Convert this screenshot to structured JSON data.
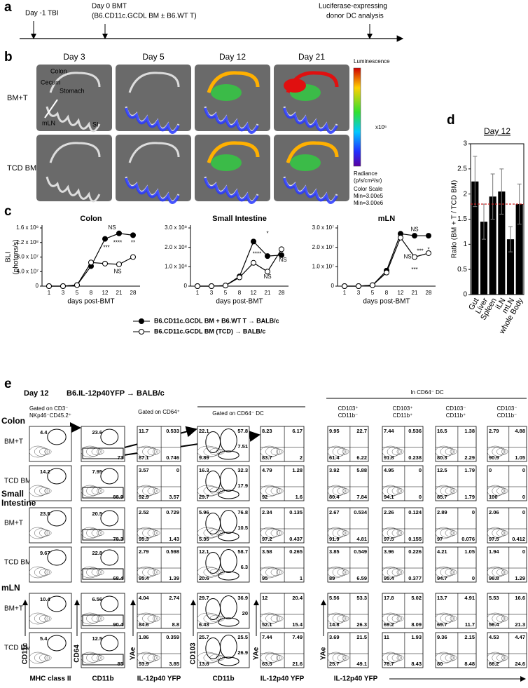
{
  "panel_labels": [
    "a",
    "b",
    "c",
    "d",
    "e"
  ],
  "timeline": {
    "events": [
      "Day -1 TBI",
      "Day 0 BMT",
      "(B6.CD11c.GCDL BM ± B6.WT T)",
      "Luciferase-expressing",
      "donor DC analysis"
    ]
  },
  "imaging": {
    "days": [
      "Day 3",
      "Day 5",
      "Day 12",
      "Day 21"
    ],
    "groups": [
      "BM+T",
      "TCD BM"
    ],
    "organs": [
      "Colon",
      "Cecum",
      "Stomach",
      "mLN",
      "SI"
    ],
    "scale": {
      "title": "Luminescence",
      "multiplier": "x10⁶",
      "unit": "Radiance",
      "unit_detail": "(p/s/cm²/sr)",
      "heading": "Color Scale",
      "min": "Min=3.00e5",
      "max": "Min=3.00e6"
    }
  },
  "chart_data": [
    {
      "type": "line",
      "title": "Colon",
      "ylabel": [
        "BLI",
        "(photons/s)"
      ],
      "xlabel": "days post-BMT",
      "categories": [
        "1",
        "3",
        "5",
        "8",
        "12",
        "21",
        "28"
      ],
      "series": [
        {
          "name": "B6.CD11c.GCDL BM + B6.WT T → BALB/c",
          "color": "#000000",
          "marker": "filled",
          "values": [
            0,
            0,
            3000000,
            55000000,
            130000000,
            145000000,
            140000000
          ]
        },
        {
          "name": "B6.CD11c.GCDL BM (TCD) → BALB/c",
          "color": "#000000",
          "marker": "open",
          "values": [
            0,
            0,
            3000000,
            65000000,
            62000000,
            60000000,
            80000000
          ]
        }
      ],
      "ylim": [
        0,
        160000000
      ],
      "yticks": [
        0,
        {
          "value": 40000000,
          "label": "4.0 x 10⁷"
        },
        {
          "value": 80000000,
          "label": "8.0 x 10⁷"
        },
        {
          "value": 120000000,
          "label": "1.2 x 10⁸"
        },
        {
          "value": 160000000,
          "label": "1.6 x 10⁸"
        }
      ],
      "annotations": [
        "NS",
        "***",
        "****",
        "**",
        "NS"
      ]
    },
    {
      "type": "line",
      "title": "Small Intestine",
      "xlabel": "days post-BMT",
      "categories": [
        "1",
        "3",
        "5",
        "8",
        "12",
        "21",
        "28"
      ],
      "series": [
        {
          "color": "#000000",
          "marker": "filled",
          "values": [
            0,
            0,
            3000000,
            50000000,
            230000000,
            155000000,
            160000000
          ]
        },
        {
          "color": "#000000",
          "marker": "open",
          "values": [
            0,
            0,
            3000000,
            45000000,
            120000000,
            75000000,
            190000000
          ]
        }
      ],
      "ylim": [
        0,
        300000000
      ],
      "yticks": [
        0,
        {
          "value": 100000000,
          "label": "1.0 x 10⁸"
        },
        {
          "value": 200000000,
          "label": "2.0 x 10⁸"
        },
        {
          "value": 300000000,
          "label": "3.0 x 10⁸"
        }
      ],
      "annotations": [
        "*",
        "****",
        "NS",
        "NS"
      ]
    },
    {
      "type": "line",
      "title": "mLN",
      "xlabel": "days post-BMT",
      "categories": [
        "1",
        "3",
        "5",
        "8",
        "12",
        "21",
        "28"
      ],
      "series": [
        {
          "color": "#000000",
          "marker": "filled",
          "values": [
            0,
            0,
            500000,
            8000000,
            27000000,
            26000000,
            26000000
          ]
        },
        {
          "color": "#000000",
          "marker": "open",
          "values": [
            0,
            0,
            500000,
            7000000,
            25000000,
            15000000,
            17000000
          ]
        }
      ],
      "ylim": [
        0,
        30000000
      ],
      "yticks": [
        0,
        {
          "value": 10000000,
          "label": "1.0 x 10⁷"
        },
        {
          "value": 20000000,
          "label": "2.0 x 10⁷"
        },
        {
          "value": 30000000,
          "label": "3.0 x 10⁷"
        }
      ],
      "annotations": [
        "NS",
        "NS",
        "***",
        "*",
        "***"
      ]
    },
    {
      "type": "bar",
      "title": "Day 12",
      "ylabel": "Ratio (BM + T / TCD BM)",
      "categories": [
        "Gut",
        "Liver",
        "Spleen",
        "iLN",
        "mLN",
        "whole Body"
      ],
      "values": [
        2.25,
        1.45,
        1.95,
        2.05,
        1.1,
        1.8
      ],
      "errors": [
        0.5,
        0.35,
        0.45,
        0.45,
        0.25,
        0.4
      ],
      "color": "#000000",
      "reference_line": 1.8,
      "reference_color": "#cc2222",
      "ylim": [
        0,
        3
      ],
      "yticks": [
        0,
        0.5,
        1,
        1.5,
        2,
        2.5,
        3
      ]
    }
  ],
  "flow": {
    "day": "Day 12",
    "model": "B6.IL-12p40YFP → BALB/c",
    "lineage_gate": [
      "Gated on CD3⁻",
      "NKp46⁻CD45.2⁺"
    ],
    "gates": [
      "Gated on CD64⁺",
      "Gated on CD64⁻ DC",
      "In CD64⁻ DC"
    ],
    "subsets": [
      [
        "CD103⁺",
        "CD11b⁻"
      ],
      [
        "CD103⁺",
        "CD11b⁺"
      ],
      [
        "CD103⁻",
        "CD11b⁺"
      ],
      [
        "CD103⁻",
        "CD11b⁻"
      ]
    ],
    "x_axes": [
      "MHC class II",
      "CD11b",
      "IL-12p40 YFP",
      "CD11b",
      "IL-12p40 YFP",
      "IL-12p40 YFP"
    ],
    "y_axes": [
      "CD11c",
      "CD64",
      "YAe",
      "CD103",
      "YAe",
      "YAe"
    ],
    "tissues": [
      {
        "name": "Colon",
        "rows": [
          {
            "group": "BM+T",
            "plots": [
              [
                4.4
              ],
              [
                23.6,
                73
              ],
              [
                11.7,
                0.533,
                87.1,
                0.746
              ],
              [
                22.1,
                57.8,
                7.51,
                9.89
              ],
              [
                8.23,
                6.17,
                83.7,
                2
              ],
              [
                9.95,
                22.7,
                61.4,
                6.22
              ],
              [
                7.44,
                0.536,
                91.8,
                0.238
              ],
              [
                16.5,
                1.38,
                80.3,
                2.29
              ],
              [
                2.79,
                4.88,
                90.9,
                1.05
              ]
            ]
          },
          {
            "group": "TCD BM",
            "plots": [
              [
                14.2
              ],
              [
                7.95,
                88.9
              ],
              [
                3.57,
                0,
                92.9,
                3.57
              ],
              [
                16.3,
                32.3,
                17.9,
                29.7
              ],
              [
                4.79,
                1.28,
                92,
                1.6
              ],
              [
                3.92,
                5.88,
                80.4,
                7.84
              ],
              [
                4.95,
                0,
                94.1,
                0
              ],
              [
                12.5,
                1.79,
                85.7,
                1.79
              ],
              [
                0,
                0,
                100,
                0
              ]
            ]
          }
        ]
      },
      {
        "name": "Small Intestine",
        "rows": [
          {
            "group": "BM+T",
            "plots": [
              [
                23.5
              ],
              [
                20.5,
                78.3
              ],
              [
                2.52,
                0.729,
                95.3,
                1.43
              ],
              [
                5.96,
                76.8,
                10.5,
                5.35
              ],
              [
                2.34,
                0.135,
                97.2,
                0.437
              ],
              [
                2.67,
                0.534,
                91.9,
                4.81
              ],
              [
                2.26,
                0.124,
                97.5,
                0.155
              ],
              [
                2.89,
                0,
                97,
                0.076
              ],
              [
                2.06,
                0,
                97.5,
                0.412
              ]
            ]
          },
          {
            "group": "TCD BM",
            "plots": [
              [
                9.67
              ],
              [
                22.8,
                68.4
              ],
              [
                2.79,
                0.598,
                95.4,
                1.39
              ],
              [
                12.1,
                58.7,
                6.3,
                20.6
              ],
              [
                3.58,
                0.265,
                95,
                1
              ],
              [
                3.85,
                0.549,
                89,
                6.59
              ],
              [
                3.96,
                0.226,
                95.4,
                0.377
              ],
              [
                4.21,
                1.05,
                94.7,
                0
              ],
              [
                1.94,
                0,
                96.8,
                1.29
              ]
            ]
          }
        ]
      },
      {
        "name": "mLN",
        "rows": [
          {
            "group": "BM+T",
            "plots": [
              [
                10.4
              ],
              [
                6.56,
                90.4
              ],
              [
                4.04,
                2.74,
                84.6,
                8.8
              ],
              [
                29.7,
                36.9,
                20,
                6.43
              ],
              [
                12,
                20.4,
                52.1,
                15.4
              ],
              [
                5.56,
                53.3,
                14.8,
                26.3
              ],
              [
                17.8,
                5.02,
                69.2,
                8.09
              ],
              [
                13.7,
                4.91,
                69.7,
                11.7
              ],
              [
                5.53,
                16.6,
                56.4,
                21.3
              ]
            ]
          },
          {
            "group": "TCD BM",
            "plots": [
              [
                5.4
              ],
              [
                12.5,
                85
              ],
              [
                1.86,
                0.359,
                93.9,
                3.85
              ],
              [
                25.7,
                25.5,
                26.9,
                13.8
              ],
              [
                7.44,
                7.49,
                63.5,
                21.6
              ],
              [
                3.69,
                21.5,
                25.7,
                49.1
              ],
              [
                11,
                1.93,
                78.7,
                8.43
              ],
              [
                9.36,
                2.15,
                80,
                8.48
              ],
              [
                4.53,
                4.47,
                66.2,
                24.6
              ]
            ]
          }
        ]
      }
    ]
  }
}
